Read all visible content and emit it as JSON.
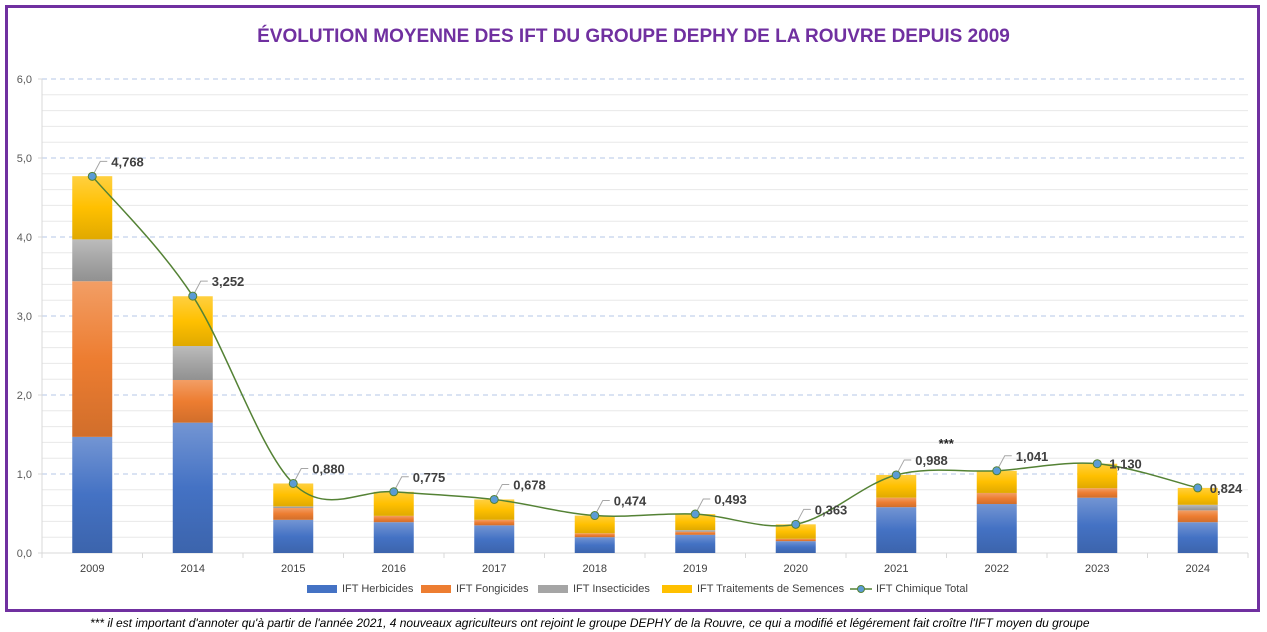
{
  "chart_data": {
    "type": "bar",
    "stacked": true,
    "title": "ÉVOLUTION MOYENNE DES IFT DU GROUPE DEPHY DE LA ROUVRE DEPUIS 2009",
    "categories": [
      "2009",
      "2014",
      "2015",
      "2016",
      "2017",
      "2018",
      "2019",
      "2020",
      "2021",
      "2022",
      "2023",
      "2024"
    ],
    "ylim": [
      0,
      6
    ],
    "yticks": [
      "0,0",
      "1,0",
      "2,0",
      "3,0",
      "4,0",
      "5,0",
      "6,0"
    ],
    "grid": true,
    "legend_position": "bottom",
    "series": [
      {
        "name": "IFT Herbicides",
        "color": "#4472c4",
        "values": [
          1.47,
          1.65,
          0.42,
          0.39,
          0.35,
          0.2,
          0.23,
          0.15,
          0.58,
          0.62,
          0.7,
          0.39
        ]
      },
      {
        "name": "IFT Fongicides",
        "color": "#ed7d31",
        "values": [
          1.97,
          0.54,
          0.15,
          0.08,
          0.07,
          0.05,
          0.04,
          0.03,
          0.12,
          0.14,
          0.12,
          0.15
        ]
      },
      {
        "name": "IFT Insecticides",
        "color": "#a5a5a5",
        "values": [
          0.53,
          0.43,
          0.02,
          0,
          0,
          0,
          0.02,
          0,
          0,
          0,
          0,
          0.07
        ]
      },
      {
        "name": "IFT Traitements de Semences",
        "color": "#ffc000",
        "values": [
          0.8,
          0.63,
          0.29,
          0.305,
          0.258,
          0.224,
          0.203,
          0.183,
          0.288,
          0.281,
          0.31,
          0.214
        ]
      }
    ],
    "line": {
      "name": "IFT Chimique Total",
      "type": "line",
      "smooth": true,
      "color": "#548235",
      "values": [
        4.768,
        3.252,
        0.88,
        0.775,
        0.678,
        0.474,
        0.493,
        0.363,
        0.988,
        1.041,
        1.13,
        0.824
      ],
      "labels": [
        "4,768",
        "3,252",
        "0,880",
        "0,775",
        "0,678",
        "0,474",
        "0,493",
        "0,363",
        "0,988",
        "1,041",
        "1,130",
        "0,824"
      ]
    },
    "annotations": [
      {
        "category": "2021",
        "text": "***"
      }
    ],
    "footnote": "*** il est important d'annoter qu'à partir de l'année 2021, 4 nouveaux agriculteurs ont rejoint le groupe DEPHY de la Rouvre, ce qui a modifié et légérement fait croître l'IFT moyen du groupe"
  }
}
